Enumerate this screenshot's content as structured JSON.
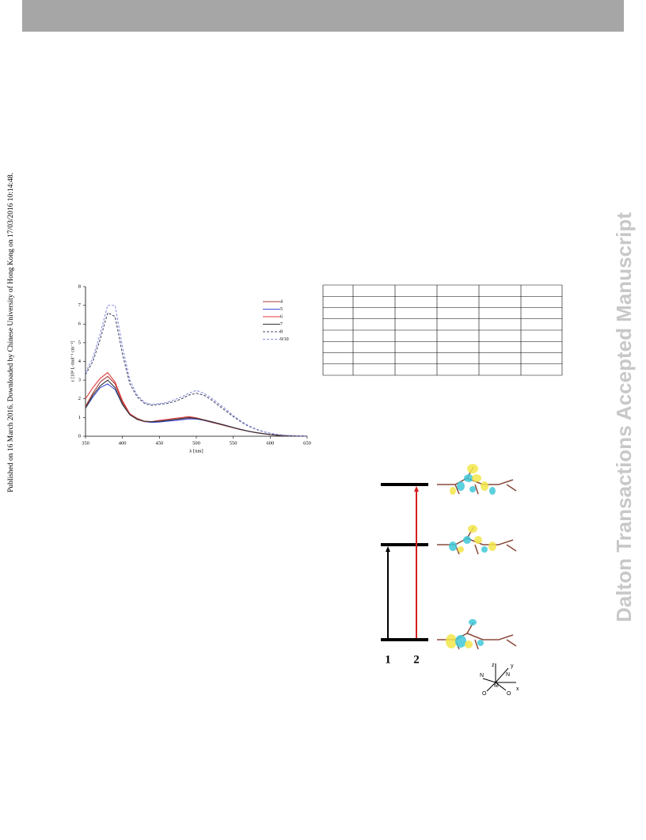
{
  "side_note": "Published on 16 March 2016. Downloaded by Chinese University of Hong Kong on 17/03/2016 10:14:48.",
  "watermark": "Dalton Transactions Accepted Manuscript",
  "chart_data": {
    "type": "line",
    "xlabel": "λ [nm]",
    "ylabel": "ε [10⁴ L·mol⁻¹ cm⁻¹]",
    "x": [
      350,
      360,
      370,
      380,
      390,
      400,
      410,
      420,
      430,
      440,
      450,
      460,
      470,
      480,
      490,
      500,
      510,
      520,
      530,
      540,
      550,
      560,
      570,
      580,
      590,
      600,
      610,
      620,
      630,
      640,
      650
    ],
    "xlim": [
      350,
      650
    ],
    "xticks": [
      350,
      400,
      450,
      500,
      550,
      600,
      650
    ],
    "ylim": [
      0,
      8
    ],
    "yticks": [
      0,
      1,
      2,
      3,
      4,
      5,
      6,
      7,
      8
    ],
    "legend": "upper right",
    "series": [
      {
        "name": "4",
        "color": "#a83a3a",
        "style": "solid",
        "values": [
          1.6,
          2.3,
          2.9,
          3.2,
          2.8,
          1.8,
          1.2,
          0.95,
          0.8,
          0.75,
          0.78,
          0.82,
          0.85,
          0.9,
          0.95,
          0.93,
          0.85,
          0.75,
          0.65,
          0.55,
          0.45,
          0.35,
          0.27,
          0.2,
          0.14,
          0.09,
          0.05,
          0.03,
          0.02,
          0.01,
          0
        ]
      },
      {
        "name": "5",
        "color": "#3f4fd8",
        "style": "solid",
        "values": [
          1.5,
          2.1,
          2.6,
          2.8,
          2.5,
          1.7,
          1.15,
          0.9,
          0.78,
          0.74,
          0.76,
          0.8,
          0.84,
          0.88,
          0.93,
          0.92,
          0.86,
          0.77,
          0.68,
          0.58,
          0.47,
          0.37,
          0.28,
          0.2,
          0.14,
          0.09,
          0.05,
          0.03,
          0.02,
          0.01,
          0
        ]
      },
      {
        "name": "6",
        "color": "#e03a3a",
        "style": "solid",
        "values": [
          2.0,
          2.6,
          3.1,
          3.4,
          2.9,
          1.9,
          1.2,
          0.9,
          0.78,
          0.78,
          0.85,
          0.9,
          0.95,
          1.0,
          1.05,
          0.98,
          0.88,
          0.78,
          0.68,
          0.57,
          0.46,
          0.36,
          0.27,
          0.2,
          0.14,
          0.09,
          0.05,
          0.03,
          0.02,
          0.01,
          0
        ]
      },
      {
        "name": "7",
        "color": "#333333",
        "style": "solid",
        "values": [
          1.5,
          2.2,
          2.7,
          3.0,
          2.6,
          1.7,
          1.15,
          0.9,
          0.8,
          0.78,
          0.8,
          0.85,
          0.9,
          0.95,
          1.0,
          0.95,
          0.87,
          0.78,
          0.68,
          0.57,
          0.46,
          0.36,
          0.27,
          0.2,
          0.14,
          0.09,
          0.05,
          0.03,
          0.02,
          0.01,
          0
        ]
      },
      {
        "name": "8",
        "color": "#4a4a6a",
        "style": "dashed",
        "values": [
          3.3,
          4.0,
          5.2,
          6.6,
          6.4,
          4.4,
          2.8,
          2.1,
          1.75,
          1.65,
          1.7,
          1.75,
          1.85,
          2.0,
          2.2,
          2.3,
          2.2,
          1.95,
          1.65,
          1.35,
          1.05,
          0.78,
          0.55,
          0.38,
          0.25,
          0.15,
          0.09,
          0.05,
          0.03,
          0.02,
          0.01
        ]
      },
      {
        "name": "9/10",
        "color": "#8a8ee0",
        "style": "dashed",
        "values": [
          3.4,
          4.2,
          5.5,
          7.0,
          7.0,
          4.8,
          3.0,
          2.2,
          1.8,
          1.7,
          1.75,
          1.8,
          1.95,
          2.1,
          2.3,
          2.45,
          2.3,
          2.05,
          1.75,
          1.45,
          1.1,
          0.82,
          0.58,
          0.4,
          0.26,
          0.16,
          0.1,
          0.05,
          0.03,
          0.02,
          0.01
        ]
      }
    ]
  },
  "diagram": {
    "transitions": [
      "1",
      "2"
    ],
    "axes": {
      "z": "z",
      "y": "y",
      "x": "x",
      "n1": "N",
      "n2": "N",
      "o1": "O",
      "o2": "O",
      "m": "M"
    }
  }
}
